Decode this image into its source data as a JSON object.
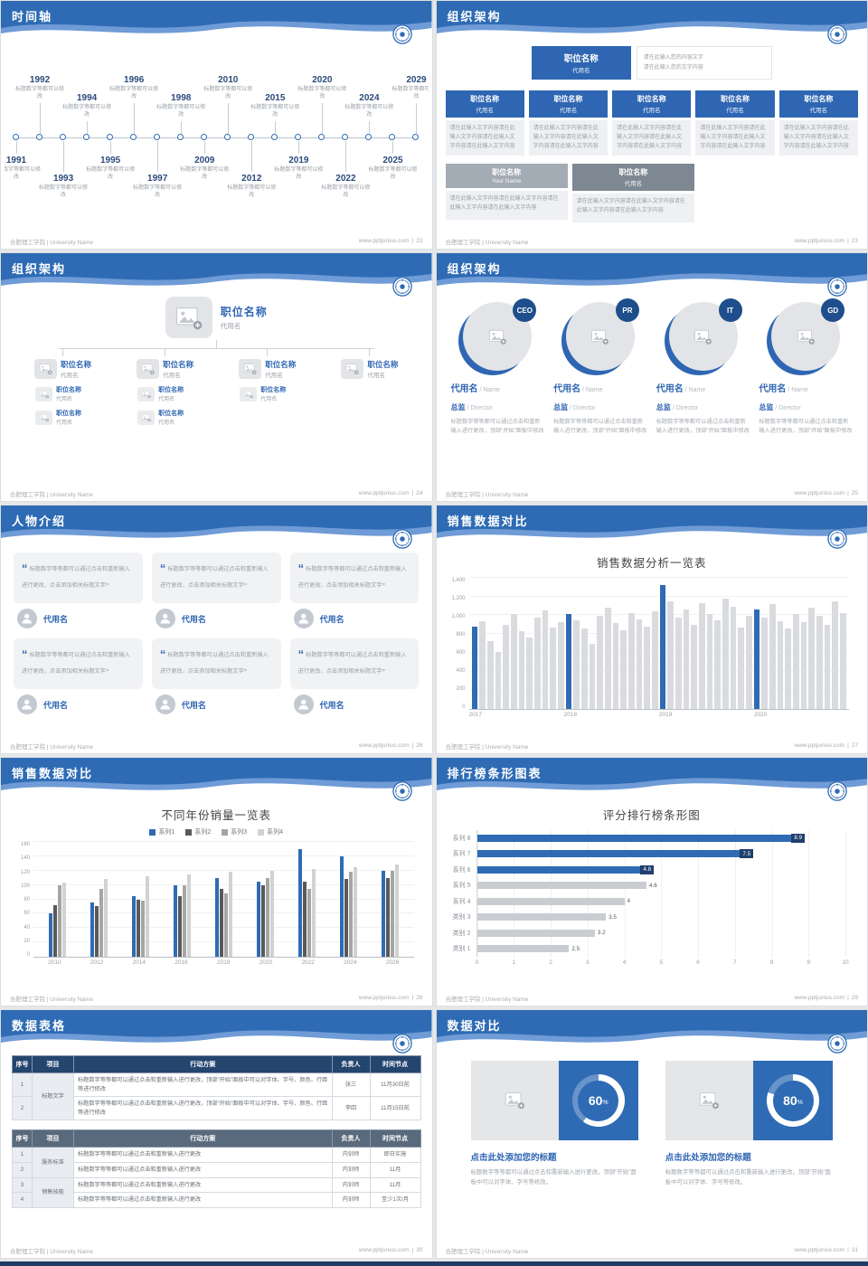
{
  "common": {
    "footer_left": "合肥理工学院 | University Name",
    "footer_site": "www.pptjunius.com",
    "footer_sep": "|"
  },
  "slides": {
    "timeline": {
      "title": "时间轴",
      "page": "22",
      "caption": "标题数字等都可以修改",
      "nodes": [
        {
          "year": "1991",
          "side": "bottom",
          "level": 1
        },
        {
          "year": "1992",
          "side": "top",
          "level": 2
        },
        {
          "year": "1993",
          "side": "bottom",
          "level": 2
        },
        {
          "year": "1994",
          "side": "top",
          "level": 1
        },
        {
          "year": "1995",
          "side": "bottom",
          "level": 1
        },
        {
          "year": "1996",
          "side": "top",
          "level": 2
        },
        {
          "year": "1997",
          "side": "bottom",
          "level": 2
        },
        {
          "year": "1998",
          "side": "top",
          "level": 1
        },
        {
          "year": "2009",
          "side": "bottom",
          "level": 1
        },
        {
          "year": "2010",
          "side": "top",
          "level": 2
        },
        {
          "year": "2012",
          "side": "bottom",
          "level": 2
        },
        {
          "year": "2015",
          "side": "top",
          "level": 1
        },
        {
          "year": "2019",
          "side": "bottom",
          "level": 1
        },
        {
          "year": "2020",
          "side": "top",
          "level": 2
        },
        {
          "year": "2022",
          "side": "bottom",
          "level": 2
        },
        {
          "year": "2024",
          "side": "top",
          "level": 1
        },
        {
          "year": "2025",
          "side": "bottom",
          "level": 1
        },
        {
          "year": "2029",
          "side": "top",
          "level": 2
        }
      ]
    },
    "org1": {
      "title": "组织架构",
      "page": "23",
      "root": {
        "name": "职位名称",
        "sub": "代用名"
      },
      "root_note": [
        "请在此输入您的内容文字",
        "请在此输入您的文字内容"
      ],
      "note_text": "请在此输入文字内容请在此输入文字内容请在此输入文字内容请在此输入文字内容",
      "row1": [
        {
          "name": "职位名称",
          "sub": "代用名"
        },
        {
          "name": "职位名称",
          "sub": "代用名"
        },
        {
          "name": "职位名称",
          "sub": "代用名"
        },
        {
          "name": "职位名称",
          "sub": "代用名"
        },
        {
          "name": "职位名称",
          "sub": "代用名"
        }
      ],
      "row2": [
        {
          "name": "职位名称",
          "sub": "Your Name"
        },
        {
          "name": "职位名称",
          "sub": "代用名"
        }
      ]
    },
    "org2": {
      "title": "组织架构",
      "page": "24",
      "root": {
        "name": "职位名称",
        "sub": "代用名"
      },
      "children": [
        {
          "name": "职位名称",
          "sub": "代用名",
          "kids": [
            {
              "name": "职位名称",
              "sub": "代用名"
            },
            {
              "name": "职位名称",
              "sub": "代用名"
            }
          ]
        },
        {
          "name": "职位名称",
          "sub": "代用名",
          "kids": [
            {
              "name": "职位名称",
              "sub": "代用名"
            },
            {
              "name": "职位名称",
              "sub": "代用名"
            }
          ]
        },
        {
          "name": "职位名称",
          "sub": "代用名",
          "kids": [
            {
              "name": "职位名称",
              "sub": "代用名"
            }
          ]
        },
        {
          "name": "职位名称",
          "sub": "代用名",
          "kids": []
        }
      ]
    },
    "org3": {
      "title": "组织架构",
      "page": "25",
      "desc": "标题数字等等都可以通过点击和重新输入进行更改，顶部“开始”面板中修改",
      "members": [
        {
          "badge": "CEO",
          "name": "代用名",
          "name_en": "/ Name",
          "role": "总监",
          "role_en": "/ Director"
        },
        {
          "badge": "PR",
          "name": "代用名",
          "name_en": "/ Name",
          "role": "总监",
          "role_en": "/ Director"
        },
        {
          "badge": "IT",
          "name": "代用名",
          "name_en": "/ Name",
          "role": "总监",
          "role_en": "/ Director"
        },
        {
          "badge": "GD",
          "name": "代用名",
          "name_en": "/ Name",
          "role": "总监",
          "role_en": "/ Director"
        }
      ]
    },
    "people": {
      "title": "人物介绍",
      "page": "26",
      "count": 6,
      "quote": "标题数字等等都可以通过点击和重新输入进行更改，点击添加相关标题文字",
      "name": "代用名"
    },
    "chart_dense": {
      "title": "销售数据对比",
      "page": "27",
      "chart": {
        "type": "bar",
        "chart_title": "销售数据分析一览表",
        "x_ticks": [
          "2017",
          "2018",
          "2019",
          "2020"
        ],
        "y_ticks": [
          "0",
          "200",
          "400",
          "600",
          "800",
          "1,000",
          "1,200",
          "1,400"
        ],
        "ylim": [
          0,
          1400
        ],
        "bar_color": "#d9dbde",
        "accent_color": "#2e6bb4",
        "highlight_indexes": [
          0,
          12,
          24,
          36
        ],
        "values": [
          880,
          940,
          720,
          610,
          900,
          1010,
          830,
          760,
          980,
          1050,
          870,
          930,
          1010,
          950,
          860,
          700,
          990,
          1080,
          920,
          840,
          1020,
          960,
          880,
          1040,
          1320,
          1150,
          980,
          1060,
          900,
          1130,
          1010,
          950,
          1180,
          1090,
          870,
          990,
          1060,
          980,
          1120,
          940,
          860,
          1010,
          930,
          1080,
          990,
          900,
          1150,
          1020
        ]
      }
    },
    "chart_group": {
      "title": "销售数据对比",
      "page": "28",
      "chart": {
        "type": "bar",
        "chart_title": "不同年份销量一览表",
        "legend": [
          "系列1",
          "系列2",
          "系列3",
          "系列4"
        ],
        "series_colors": [
          "#2e6bb4",
          "#595959",
          "#a6a6a6",
          "#d2d2d2"
        ],
        "categories": [
          "2010",
          "2012",
          "2014",
          "2016",
          "2018",
          "2020",
          "2022",
          "2024",
          "2026"
        ],
        "y_ticks": [
          "0",
          "20",
          "40",
          "60",
          "80",
          "100",
          "120",
          "140",
          "160"
        ],
        "ylim": [
          0,
          160
        ],
        "series": [
          {
            "name": "系列1",
            "values": [
              60,
              75,
              85,
              100,
              110,
              105,
              150,
              140,
              120
            ]
          },
          {
            "name": "系列2",
            "values": [
              72,
              70,
              80,
              85,
              95,
              100,
              105,
              108,
              110
            ]
          },
          {
            "name": "系列3",
            "values": [
              100,
              95,
              78,
              100,
              88,
              110,
              95,
              118,
              120
            ]
          },
          {
            "name": "系列4",
            "values": [
              103,
              108,
              112,
              115,
              118,
              120,
              122,
              125,
              128
            ]
          }
        ]
      }
    },
    "chart_rank": {
      "title": "排行榜条形图表",
      "page": "29",
      "chart": {
        "type": "bar",
        "chart_title": "评分排行榜条形图",
        "x_ticks": [
          "0",
          "1",
          "2",
          "3",
          "4",
          "5",
          "6",
          "7",
          "8",
          "9",
          "10"
        ],
        "xlim": [
          0,
          10
        ],
        "rows": [
          {
            "label": "系列 8",
            "value": 8.9,
            "accent": true
          },
          {
            "label": "系列 7",
            "value": 7.5,
            "accent": true
          },
          {
            "label": "系列 6",
            "value": 4.8,
            "accent": true
          },
          {
            "label": "系列 5",
            "value": 4.6,
            "accent": false
          },
          {
            "label": "系列 4",
            "value": 4,
            "accent": false
          },
          {
            "label": "类别 3",
            "value": 3.5,
            "accent": false
          },
          {
            "label": "类别 2",
            "value": 3.2,
            "accent": false
          },
          {
            "label": "类别 1",
            "value": 2.5,
            "accent": false
          }
        ]
      }
    },
    "tables": {
      "title": "数据表格",
      "page": "30",
      "headers": [
        "序号",
        "项目",
        "行动方案",
        "负责人",
        "时间节点"
      ],
      "table1_rows": [
        {
          "no": "1",
          "project": "标题文字",
          "span": 2,
          "plan": "标题数字等等都可以通过点击和重新输入进行更改，顶部“开始”面板中可以对字体、字号、颜色、行距等进行修改",
          "owner": "张三",
          "time": "11月30日前"
        },
        {
          "no": "2",
          "project": "",
          "plan": "标题数字等等都可以通过点击和重新输入进行更改，顶部“开始”面板中可以对字体、字号、颜色、行距等进行修改",
          "owner": "李四",
          "time": "11月15日前"
        }
      ],
      "table2_rows": [
        {
          "no": "1",
          "project": "服务标准",
          "span": 2,
          "plan": "标题数字等等都可以通过点击和重新输入进行更改",
          "owner": "内训师",
          "time": "即日实施"
        },
        {
          "no": "2",
          "project": "",
          "plan": "标题数字等等都可以通过点击和重新输入进行更改",
          "owner": "内训师",
          "time": "11月"
        },
        {
          "no": "3",
          "project": "销售技能",
          "span": 2,
          "plan": "标题数字等等都可以通过点击和重新输入进行更改",
          "owner": "内训师",
          "time": "11月"
        },
        {
          "no": "4",
          "project": "",
          "plan": "标题数字等等都可以通过点击和重新输入进行更改",
          "owner": "内训师",
          "time": "至少1次/月"
        }
      ]
    },
    "kpi": {
      "title": "数据对比",
      "page": "31",
      "panels": [
        {
          "percent": 60,
          "percent_label": "60",
          "heading": "点击此处添加您的标题",
          "desc": "标题数字等等都可以通过点击和重新输入进行更改，顶部“开始”面板中可以对字体、字号等修改。"
        },
        {
          "percent": 80,
          "percent_label": "80",
          "heading": "点击此处添加您的标题",
          "desc": "标题数字等等都可以通过点击和重新输入进行更改，顶部“开始”面板中可以对字体、字号等修改。"
        }
      ]
    }
  }
}
